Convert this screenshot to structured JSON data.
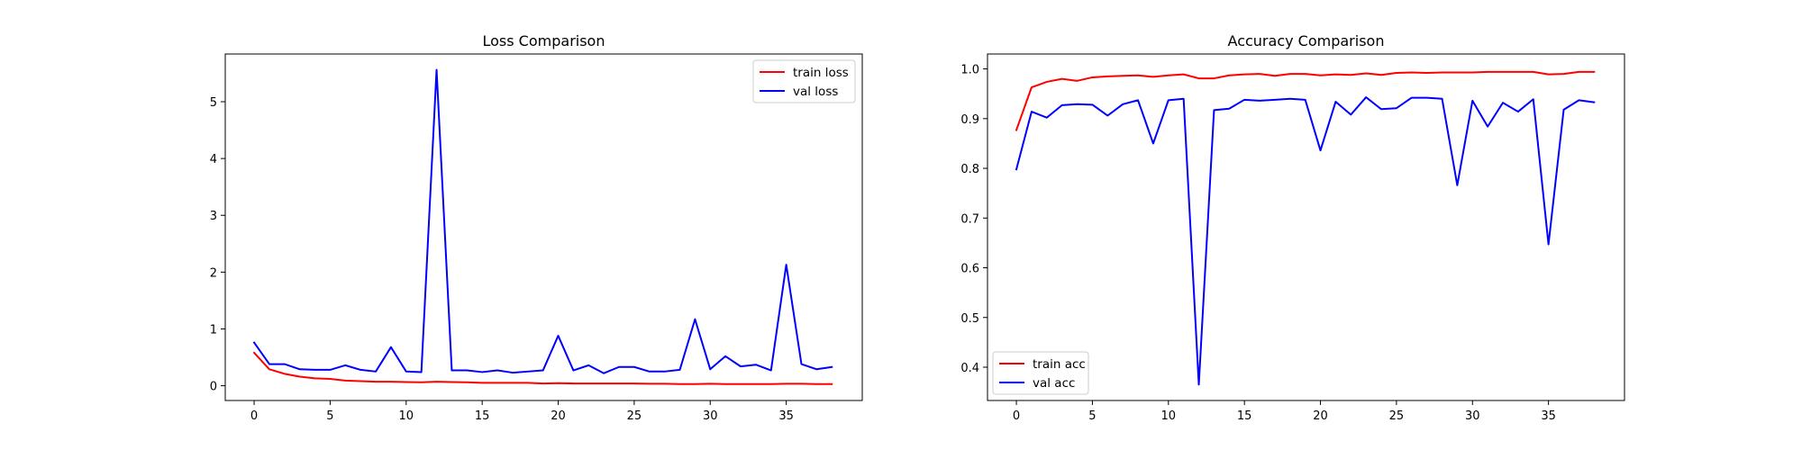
{
  "chart_data": [
    {
      "type": "line",
      "title": "Loss Comparison",
      "xlabel": "",
      "ylabel": "",
      "xlim": [
        -1.9,
        40.0
      ],
      "ylim": [
        -0.26,
        5.84
      ],
      "xticks": [
        0,
        5,
        10,
        15,
        20,
        25,
        30,
        35
      ],
      "yticks": [
        0,
        1,
        2,
        3,
        4,
        5
      ],
      "grid": false,
      "legend_position": "upper right",
      "x": [
        0,
        1,
        2,
        3,
        4,
        5,
        6,
        7,
        8,
        9,
        10,
        11,
        12,
        13,
        14,
        15,
        16,
        17,
        18,
        19,
        20,
        21,
        22,
        23,
        24,
        25,
        26,
        27,
        28,
        29,
        30,
        31,
        32,
        33,
        34,
        35,
        36,
        37,
        38
      ],
      "series": [
        {
          "name": "train loss",
          "color": "#ff0000",
          "values": [
            0.58,
            0.29,
            0.21,
            0.16,
            0.13,
            0.12,
            0.09,
            0.08,
            0.07,
            0.07,
            0.065,
            0.06,
            0.07,
            0.065,
            0.06,
            0.05,
            0.05,
            0.05,
            0.05,
            0.04,
            0.045,
            0.04,
            0.04,
            0.04,
            0.04,
            0.04,
            0.035,
            0.035,
            0.03,
            0.03,
            0.035,
            0.03,
            0.03,
            0.03,
            0.03,
            0.035,
            0.035,
            0.03,
            0.03
          ]
        },
        {
          "name": "val loss",
          "color": "#0000ff",
          "values": [
            0.76,
            0.38,
            0.38,
            0.29,
            0.28,
            0.28,
            0.36,
            0.28,
            0.25,
            0.68,
            0.25,
            0.24,
            5.56,
            0.27,
            0.27,
            0.24,
            0.27,
            0.23,
            0.25,
            0.27,
            0.88,
            0.27,
            0.36,
            0.22,
            0.33,
            0.33,
            0.25,
            0.25,
            0.28,
            1.17,
            0.29,
            0.52,
            0.34,
            0.37,
            0.27,
            2.13,
            0.38,
            0.29,
            0.33
          ]
        }
      ]
    },
    {
      "type": "line",
      "title": "Accuracy Comparison",
      "xlabel": "",
      "ylabel": "",
      "xlim": [
        -1.9,
        40.0
      ],
      "ylim": [
        0.333,
        1.03
      ],
      "xticks": [
        0,
        5,
        10,
        15,
        20,
        25,
        30,
        35
      ],
      "yticks": [
        0.4,
        0.5,
        0.6,
        0.7,
        0.8,
        0.9,
        1.0
      ],
      "ytick_labels": [
        "0.4",
        "0.5",
        "0.6",
        "0.7",
        "0.8",
        "0.9",
        "1.0"
      ],
      "grid": false,
      "legend_position": "lower left",
      "x": [
        0,
        1,
        2,
        3,
        4,
        5,
        6,
        7,
        8,
        9,
        10,
        11,
        12,
        13,
        14,
        15,
        16,
        17,
        18,
        19,
        20,
        21,
        22,
        23,
        24,
        25,
        26,
        27,
        28,
        29,
        30,
        31,
        32,
        33,
        34,
        35,
        36,
        37,
        38
      ],
      "series": [
        {
          "name": "train acc",
          "color": "#ff0000",
          "values": [
            0.877,
            0.963,
            0.974,
            0.98,
            0.976,
            0.983,
            0.985,
            0.986,
            0.987,
            0.984,
            0.987,
            0.989,
            0.981,
            0.981,
            0.987,
            0.989,
            0.99,
            0.986,
            0.99,
            0.99,
            0.987,
            0.989,
            0.988,
            0.991,
            0.988,
            0.992,
            0.993,
            0.992,
            0.993,
            0.993,
            0.993,
            0.994,
            0.994,
            0.994,
            0.994,
            0.989,
            0.99,
            0.994,
            0.994
          ]
        },
        {
          "name": "val acc",
          "color": "#0000ff",
          "values": [
            0.798,
            0.914,
            0.902,
            0.927,
            0.929,
            0.928,
            0.906,
            0.929,
            0.937,
            0.85,
            0.937,
            0.94,
            0.365,
            0.917,
            0.92,
            0.938,
            0.936,
            0.938,
            0.94,
            0.938,
            0.836,
            0.934,
            0.908,
            0.943,
            0.919,
            0.921,
            0.942,
            0.942,
            0.94,
            0.766,
            0.936,
            0.884,
            0.932,
            0.914,
            0.939,
            0.647,
            0.918,
            0.937,
            0.933
          ]
        }
      ]
    }
  ]
}
